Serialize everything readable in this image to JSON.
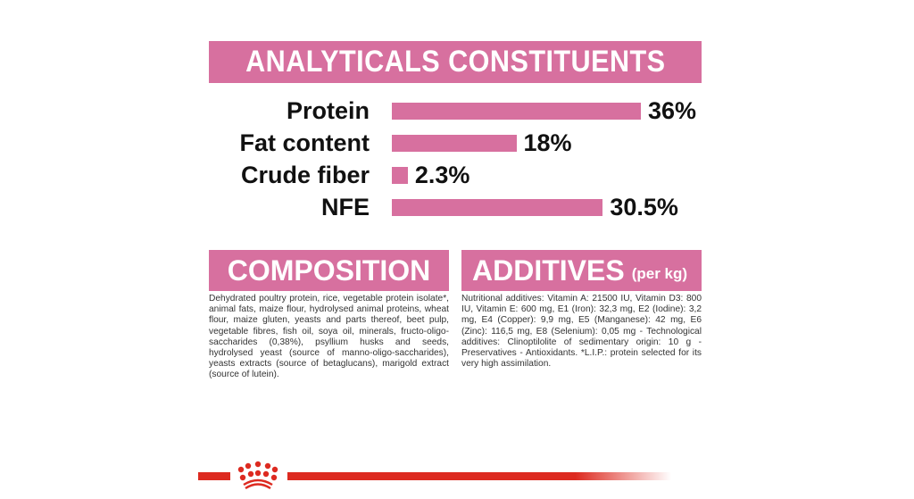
{
  "header": {
    "title": "ANALYTICALS CONSTITUENTS"
  },
  "chart_data": {
    "type": "bar",
    "orientation": "horizontal",
    "categories": [
      "Protein",
      "Fat content",
      "Crude fiber",
      "NFE"
    ],
    "values": [
      36,
      18,
      2.3,
      30.5
    ],
    "value_labels": [
      "36%",
      "18%",
      "2.3%",
      "30.5%"
    ],
    "unit": "%",
    "color": "#d7709f"
  },
  "composition": {
    "title": "COMPOSITION",
    "text": "Dehydrated poultry protein, rice, vegetable protein isolate*, animal fats, maize flour, hydrolysed animal proteins, wheat flour, maize gluten, yeasts and parts thereof, beet pulp, vegetable fibres, fish oil, soya oil, minerals, fructo-oligo- saccharides (0,38%), psyllium husks and seeds, hydrolysed yeast (source of manno-oligo-saccharides), yeasts extracts (source of betaglucans), marigold extract (source of lutein)."
  },
  "additives": {
    "title": "ADDITIVES",
    "subtitle": "(per kg)",
    "text": "Nutritional additives: Vitamin A: 21500 IU, Vitamin D3: 800 IU, Vitamin E: 600 mg, E1 (Iron): 32,3 mg, E2 (Iodine): 3,2 mg, E4 (Copper): 9,9 mg, E5 (Manganese): 42 mg, E6 (Zinc): 116,5 mg, E8 (Selenium): 0,05 mg - Technological additives: Clinoptilolite of sedimentary origin: 10 g - Preservatives - Antioxidants. *L.I.P.: protein selected for its very high assimilation."
  },
  "footer": {
    "logo": "royal-canin-crown-logo",
    "brand_color": "#dd2a20"
  }
}
